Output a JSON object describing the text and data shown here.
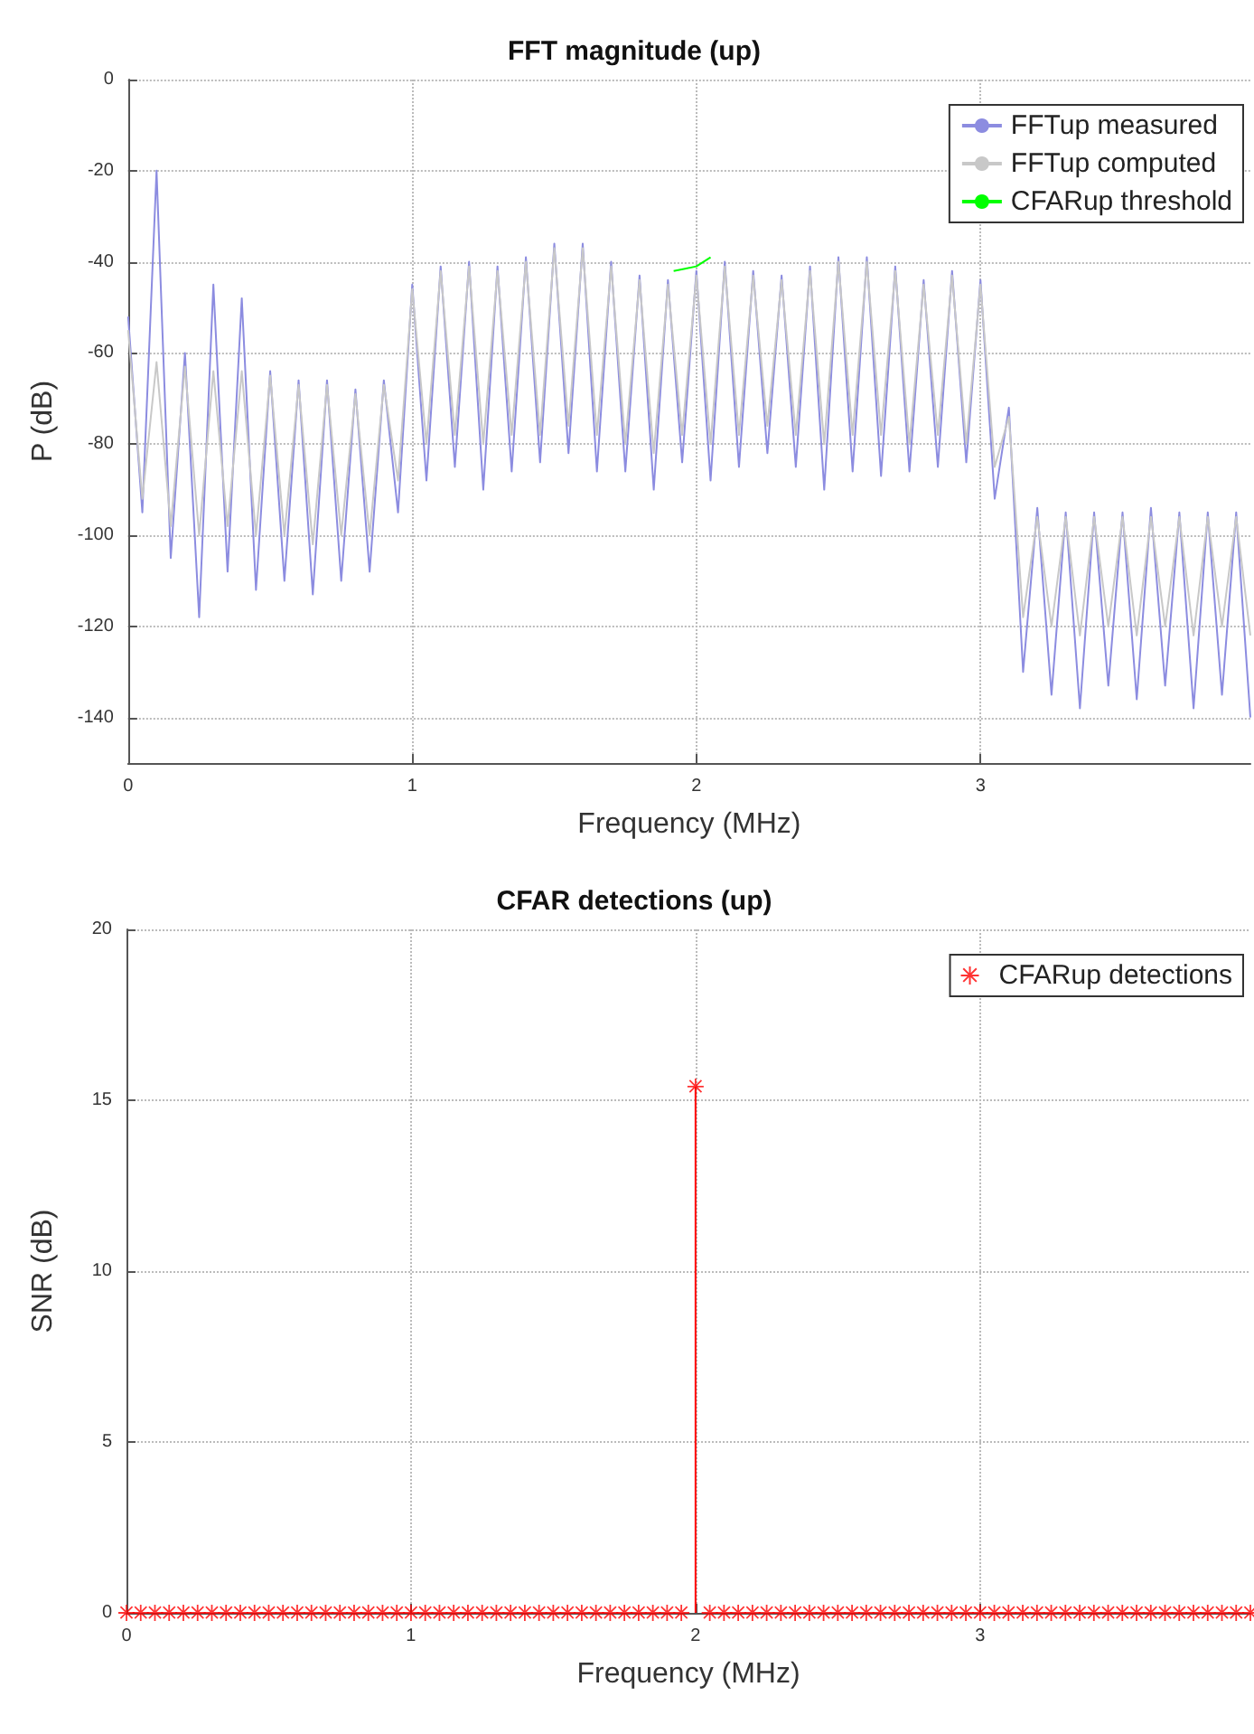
{
  "chart_data": [
    {
      "type": "line",
      "title": "FFT magnitude (up)",
      "xlabel": "Frequency (MHz)",
      "ylabel": "P (dB)",
      "xlim": [
        0,
        3.95
      ],
      "xticks": [
        0,
        1,
        2,
        3
      ],
      "ylim": [
        -150,
        0
      ],
      "yticks": [
        -140,
        -120,
        -100,
        -80,
        -60,
        -40,
        -20,
        0
      ],
      "grid": true,
      "legend": "top right",
      "marker": "none",
      "line_style": "solid",
      "x": [
        0,
        0.05,
        0.1,
        0.15,
        0.2,
        0.25,
        0.3,
        0.35,
        0.4,
        0.45,
        0.5,
        0.55,
        0.6,
        0.65,
        0.7,
        0.75,
        0.8,
        0.85,
        0.9,
        0.95,
        1.0,
        1.05,
        1.1,
        1.15,
        1.2,
        1.25,
        1.3,
        1.35,
        1.4,
        1.45,
        1.5,
        1.55,
        1.6,
        1.65,
        1.7,
        1.75,
        1.8,
        1.85,
        1.9,
        1.95,
        2.0,
        2.05,
        2.1,
        2.15,
        2.2,
        2.25,
        2.3,
        2.35,
        2.4,
        2.45,
        2.5,
        2.55,
        2.6,
        2.65,
        2.7,
        2.75,
        2.8,
        2.85,
        2.9,
        2.95,
        3.0,
        3.05,
        3.1,
        3.15,
        3.2,
        3.25,
        3.3,
        3.35,
        3.4,
        3.45,
        3.5,
        3.55,
        3.6,
        3.65,
        3.7,
        3.75,
        3.8,
        3.85,
        3.9,
        3.95
      ],
      "series": [
        {
          "name": "FFTup measured",
          "color": "#8c8ce0",
          "values": [
            -52,
            -95,
            -20,
            -105,
            -60,
            -118,
            -45,
            -108,
            -48,
            -112,
            -64,
            -110,
            -66,
            -113,
            -66,
            -110,
            -68,
            -108,
            -66,
            -95,
            -45,
            -88,
            -41,
            -85,
            -40,
            -90,
            -41,
            -86,
            -39,
            -84,
            -36,
            -82,
            -36,
            -86,
            -40,
            -86,
            -43,
            -90,
            -44,
            -84,
            -42,
            -88,
            -40,
            -85,
            -42,
            -82,
            -43,
            -85,
            -41,
            -90,
            -39,
            -86,
            -39,
            -87,
            -41,
            -86,
            -44,
            -85,
            -42,
            -84,
            -44,
            -92,
            -72,
            -130,
            -94,
            -135,
            -95,
            -138,
            -95,
            -133,
            -95,
            -136,
            -94,
            -133,
            -95,
            -138,
            -95,
            -135,
            -95,
            -140
          ]
        },
        {
          "name": "FFTup computed",
          "color": "#c8c8c8",
          "values": [
            -55,
            -92,
            -62,
            -98,
            -63,
            -100,
            -64,
            -98,
            -64,
            -100,
            -65,
            -100,
            -67,
            -102,
            -67,
            -100,
            -69,
            -100,
            -67,
            -88,
            -46,
            -80,
            -42,
            -78,
            -41,
            -80,
            -42,
            -78,
            -40,
            -78,
            -37,
            -76,
            -37,
            -78,
            -41,
            -80,
            -44,
            -82,
            -45,
            -78,
            -43,
            -80,
            -41,
            -78,
            -43,
            -76,
            -44,
            -78,
            -42,
            -80,
            -40,
            -78,
            -40,
            -78,
            -42,
            -80,
            -45,
            -78,
            -43,
            -80,
            -45,
            -85,
            -74,
            -118,
            -96,
            -120,
            -96,
            -122,
            -96,
            -120,
            -96,
            -122,
            -96,
            -120,
            -96,
            -122,
            -96,
            -120,
            -96,
            -122
          ]
        },
        {
          "name": "CFARup threshold",
          "color": "#00ff00",
          "x": [
            1.92,
            1.96,
            2.0,
            2.05
          ],
          "values": [
            -42,
            -41.5,
            -41,
            -39
          ]
        }
      ]
    },
    {
      "type": "lollipop",
      "title": "CFAR detections (up)",
      "xlabel": "Frequency (MHz)",
      "ylabel": "SNR (dB)",
      "xlim": [
        0,
        3.95
      ],
      "xticks": [
        0,
        1,
        2,
        3
      ],
      "ylim": [
        0,
        20
      ],
      "yticks": [
        0,
        5,
        10,
        15,
        20
      ],
      "grid": true,
      "legend": "top right",
      "marker": "star",
      "x": [
        0,
        0.05,
        0.1,
        0.15,
        0.2,
        0.25,
        0.3,
        0.35,
        0.4,
        0.45,
        0.5,
        0.55,
        0.6,
        0.65,
        0.7,
        0.75,
        0.8,
        0.85,
        0.9,
        0.95,
        1.0,
        1.05,
        1.1,
        1.15,
        1.2,
        1.25,
        1.3,
        1.35,
        1.4,
        1.45,
        1.5,
        1.55,
        1.6,
        1.65,
        1.7,
        1.75,
        1.8,
        1.85,
        1.9,
        1.95,
        2.0,
        2.05,
        2.1,
        2.15,
        2.2,
        2.25,
        2.3,
        2.35,
        2.4,
        2.45,
        2.5,
        2.55,
        2.6,
        2.65,
        2.7,
        2.75,
        2.8,
        2.85,
        2.9,
        2.95,
        3.0,
        3.05,
        3.1,
        3.15,
        3.2,
        3.25,
        3.3,
        3.35,
        3.4,
        3.45,
        3.5,
        3.55,
        3.6,
        3.65,
        3.7,
        3.75,
        3.8,
        3.85,
        3.9,
        3.95
      ],
      "series": [
        {
          "name": "CFARup detections",
          "color": "#ff0000",
          "values": [
            0,
            0,
            0,
            0,
            0,
            0,
            0,
            0,
            0,
            0,
            0,
            0,
            0,
            0,
            0,
            0,
            0,
            0,
            0,
            0,
            0,
            0,
            0,
            0,
            0,
            0,
            0,
            0,
            0,
            0,
            0,
            0,
            0,
            0,
            0,
            0,
            0,
            0,
            0,
            0,
            15.4,
            0,
            0,
            0,
            0,
            0,
            0,
            0,
            0,
            0,
            0,
            0,
            0,
            0,
            0,
            0,
            0,
            0,
            0,
            0,
            0,
            0,
            0,
            0,
            0,
            0,
            0,
            0,
            0,
            0,
            0,
            0,
            0,
            0,
            0,
            0,
            0,
            0,
            0,
            0
          ]
        }
      ]
    }
  ]
}
